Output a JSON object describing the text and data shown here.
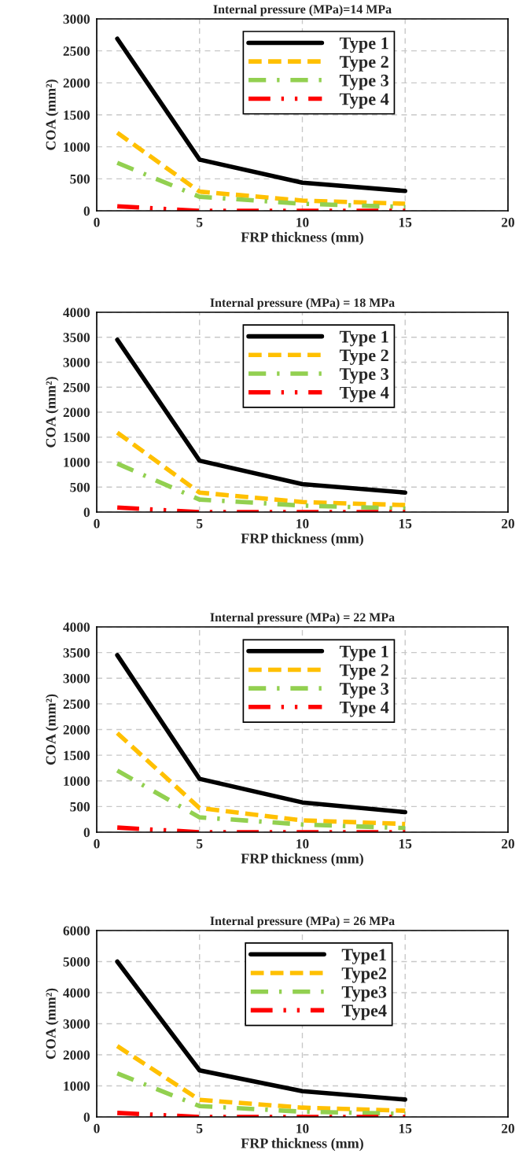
{
  "chart_data": [
    {
      "type": "line",
      "title": "Internal pressure (MPa)=14 MPa",
      "xlabel": "FRP thickness (mm)",
      "ylabel": "COA (mm²)",
      "x": [
        1,
        5,
        10,
        15
      ],
      "xlim": [
        0,
        20
      ],
      "xticks": [
        0,
        5,
        10,
        15,
        20
      ],
      "ylim": [
        0,
        3000
      ],
      "yticks": [
        0,
        500,
        1000,
        1500,
        2000,
        2500,
        3000
      ],
      "grid": true,
      "legend": "top",
      "marker": "none",
      "series": [
        {
          "name": "Type 1",
          "color": "#000000",
          "line_style": "solid",
          "values": [
            2690,
            800,
            440,
            310
          ]
        },
        {
          "name": "Type 2",
          "color": "#ffc000",
          "line_style": "dashed",
          "values": [
            1220,
            300,
            160,
            110
          ]
        },
        {
          "name": "Type 3",
          "color": "#92d050",
          "line_style": "dashdot",
          "values": [
            750,
            220,
            110,
            60
          ]
        },
        {
          "name": "Type 4",
          "color": "#ff0000",
          "line_style": "dashdotdot",
          "values": [
            70,
            0,
            0,
            0
          ]
        }
      ]
    },
    {
      "type": "line",
      "title": "Internal pressure (MPa) = 18 MPa",
      "xlabel": "FRP thickness (mm)",
      "ylabel": "COA (mm²)",
      "x": [
        1,
        5,
        10,
        15
      ],
      "xlim": [
        0,
        20
      ],
      "xticks": [
        0,
        5,
        10,
        15,
        20
      ],
      "ylim": [
        0,
        4000
      ],
      "yticks": [
        0,
        500,
        1000,
        1500,
        2000,
        2500,
        3000,
        3500,
        4000
      ],
      "grid": true,
      "legend": "top",
      "marker": "none",
      "series": [
        {
          "name": "Type 1",
          "color": "#000000",
          "line_style": "solid",
          "values": [
            3450,
            1030,
            560,
            390
          ]
        },
        {
          "name": "Type 2",
          "color": "#ffc000",
          "line_style": "dashed",
          "values": [
            1590,
            390,
            200,
            140
          ]
        },
        {
          "name": "Type 3",
          "color": "#92d050",
          "line_style": "dashdot",
          "values": [
            970,
            250,
            130,
            70
          ]
        },
        {
          "name": "Type 4",
          "color": "#ff0000",
          "line_style": "dashdotdot",
          "values": [
            90,
            0,
            0,
            0
          ]
        }
      ]
    },
    {
      "type": "line",
      "title": "Internal pressure (MPa) = 22 MPa",
      "xlabel": "FRP thickness (mm)",
      "ylabel": "COA (mm²)",
      "x": [
        1,
        5,
        10,
        15
      ],
      "xlim": [
        0,
        20
      ],
      "xticks": [
        0,
        5,
        10,
        15,
        20
      ],
      "ylim": [
        0,
        4000
      ],
      "yticks": [
        0,
        500,
        1000,
        1500,
        2000,
        2500,
        3000,
        3500,
        4000
      ],
      "grid": true,
      "legend": "top",
      "marker": "none",
      "series": [
        {
          "name": "Type 1",
          "color": "#000000",
          "line_style": "solid",
          "values": [
            3450,
            1040,
            580,
            390
          ]
        },
        {
          "name": "Type 2",
          "color": "#ffc000",
          "line_style": "dashed",
          "values": [
            1930,
            470,
            230,
            160
          ]
        },
        {
          "name": "Type 3",
          "color": "#92d050",
          "line_style": "dashdot",
          "values": [
            1200,
            290,
            150,
            80
          ]
        },
        {
          "name": "Type 4",
          "color": "#ff0000",
          "line_style": "dashdotdot",
          "values": [
            90,
            0,
            0,
            0
          ]
        }
      ]
    },
    {
      "type": "line",
      "title": "Internal pressure (MPa) = 26 MPa",
      "xlabel": "FRP thickness (mm)",
      "ylabel": "COA (mm²)",
      "x": [
        1,
        5,
        10,
        15
      ],
      "xlim": [
        0,
        20
      ],
      "xticks": [
        0,
        5,
        10,
        15,
        20
      ],
      "ylim": [
        0,
        6000
      ],
      "yticks": [
        0,
        1000,
        2000,
        3000,
        4000,
        5000,
        6000
      ],
      "grid": true,
      "legend": "top",
      "marker": "none",
      "series": [
        {
          "name": "Type1",
          "color": "#000000",
          "line_style": "solid",
          "values": [
            5000,
            1500,
            830,
            560
          ]
        },
        {
          "name": "Type2",
          "color": "#ffc000",
          "line_style": "dashed",
          "values": [
            2280,
            550,
            300,
            200
          ]
        },
        {
          "name": "Type3",
          "color": "#92d050",
          "line_style": "dashdot",
          "values": [
            1400,
            350,
            170,
            100
          ]
        },
        {
          "name": "Type4",
          "color": "#ff0000",
          "line_style": "dashdotdot",
          "values": [
            130,
            0,
            0,
            0
          ]
        }
      ]
    }
  ]
}
